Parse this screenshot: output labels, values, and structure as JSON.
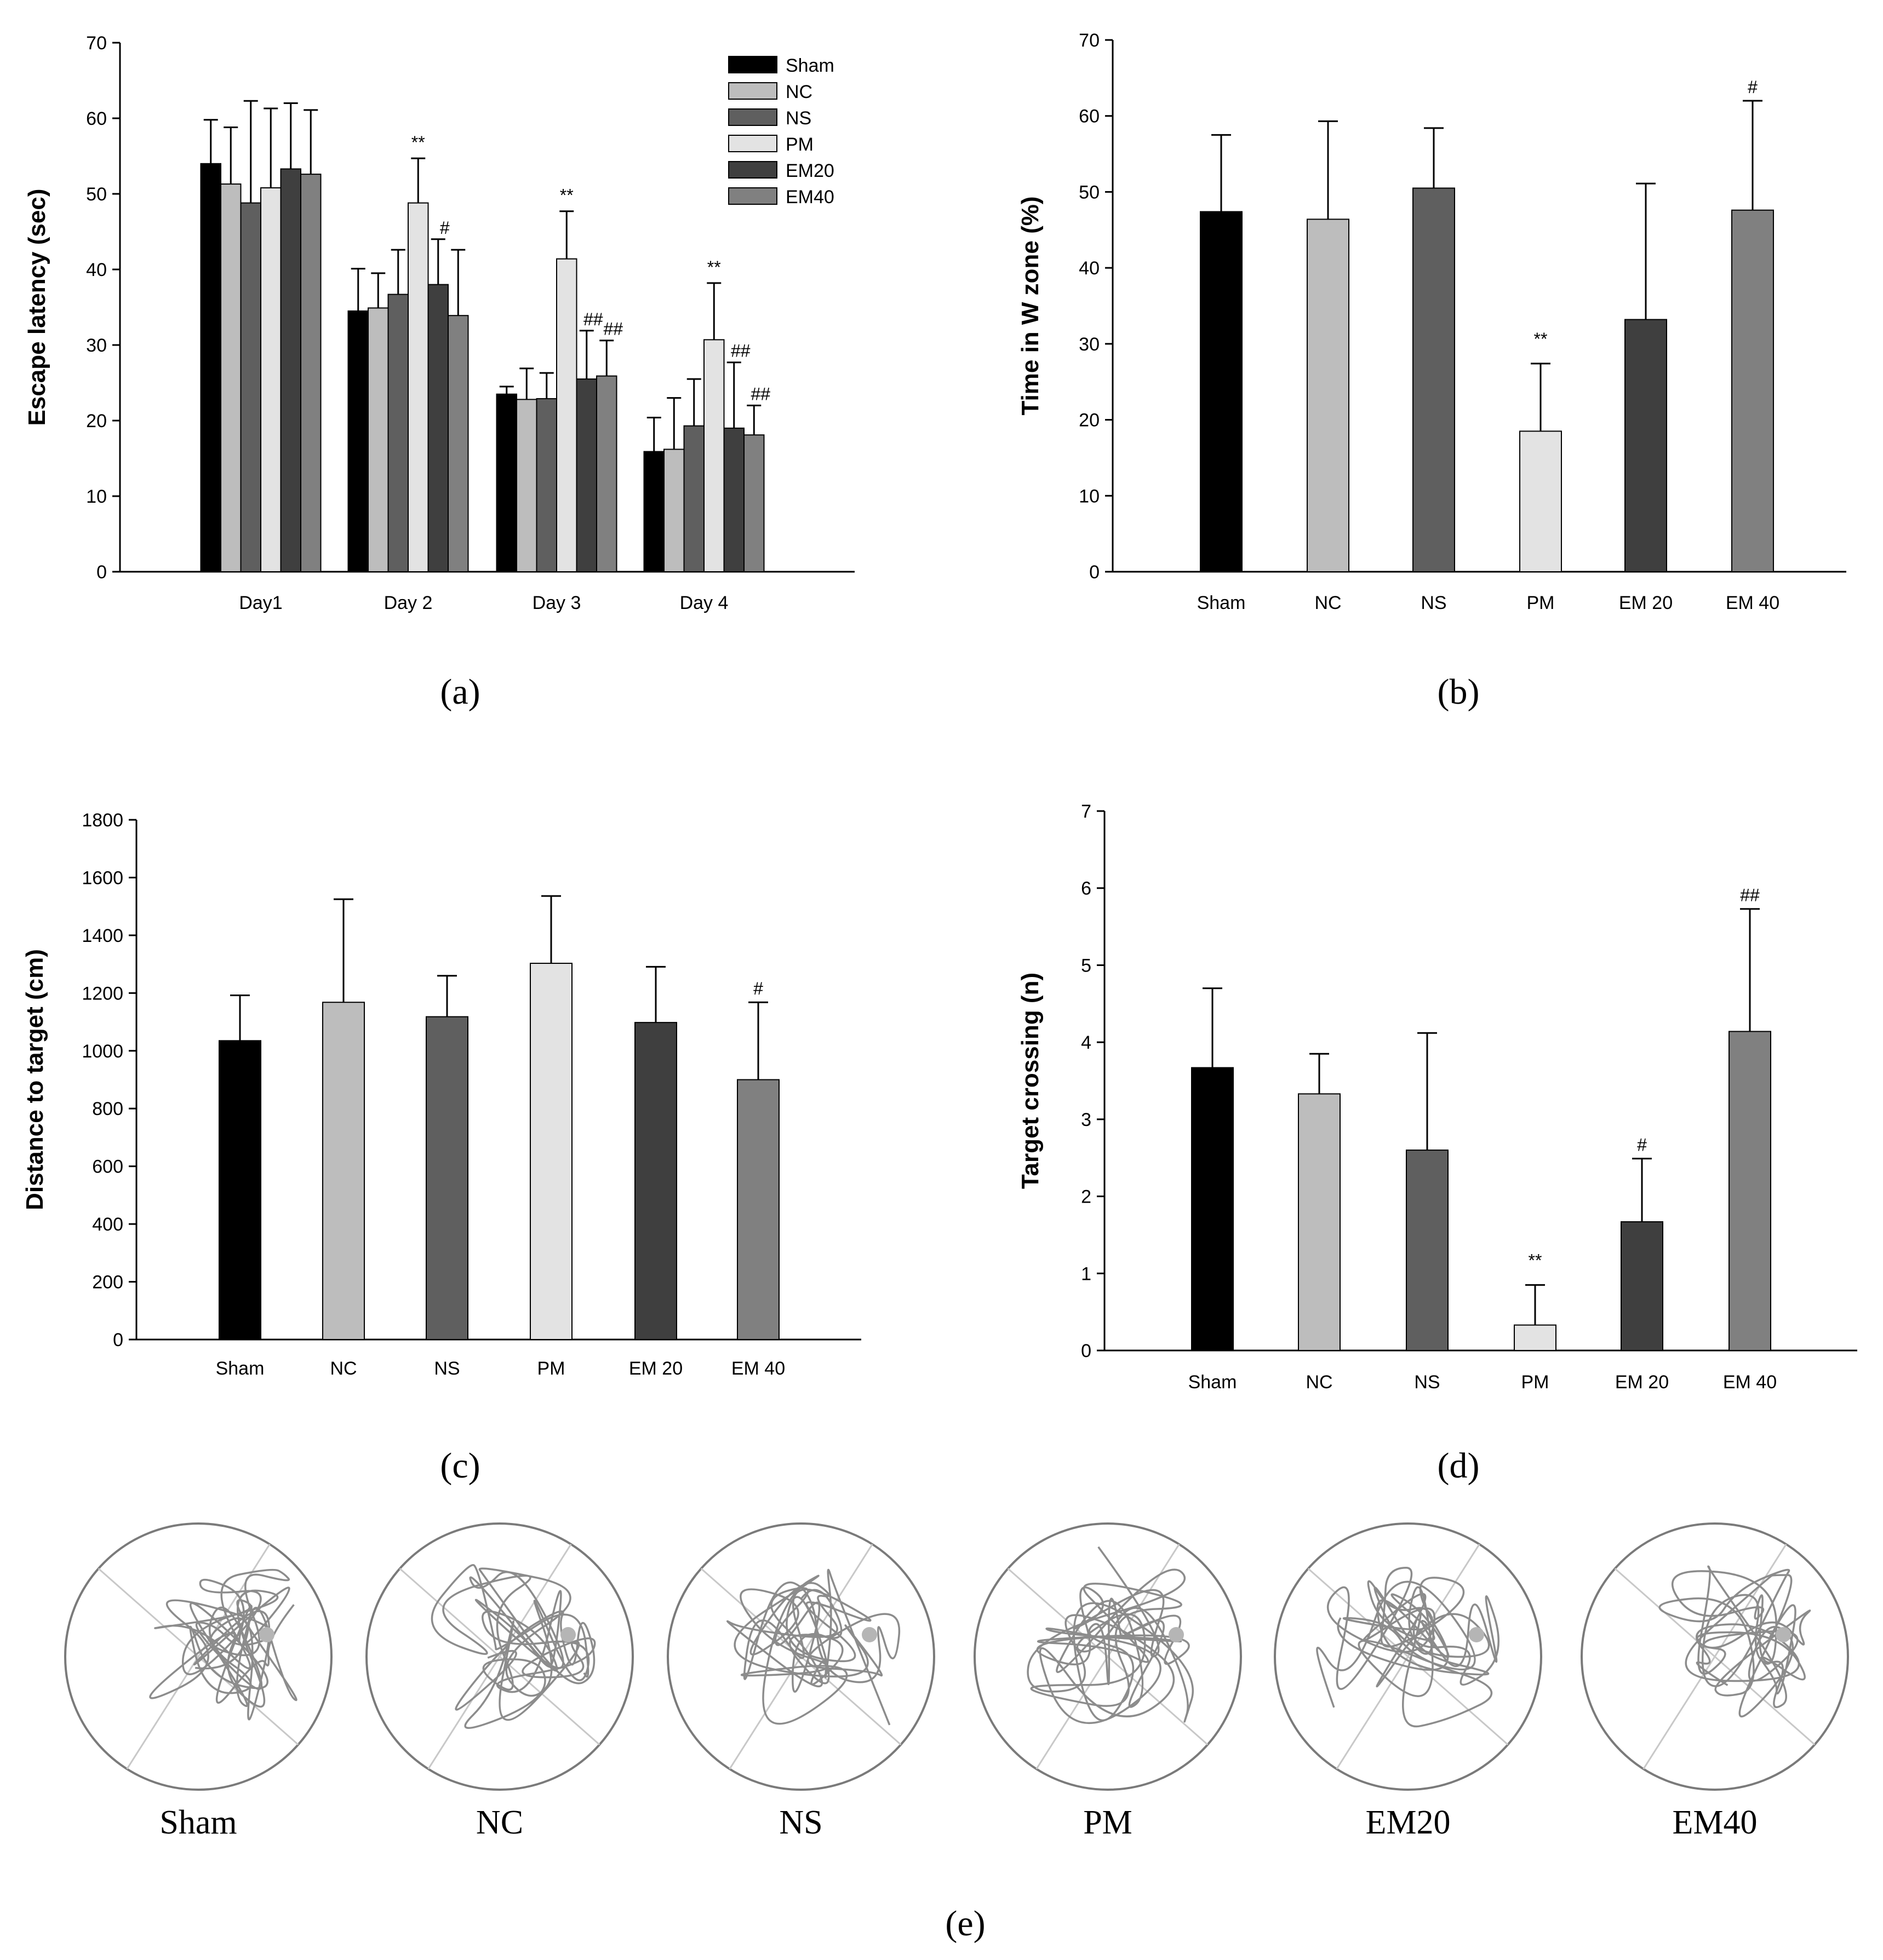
{
  "figure": {
    "panel_labels": [
      "(a)",
      "(b)",
      "(c)",
      "(d)",
      "(e)"
    ]
  },
  "colors": {
    "Sham": "#000000",
    "NC": "#bdbdbd",
    "NS": "#5f5f5f",
    "PM": "#e3e3e3",
    "EM20": "#3f3f3f",
    "EM40": "#808080"
  },
  "chart_data": [
    {
      "id": "a",
      "type": "bar",
      "title": "",
      "xlabel": "",
      "ylabel": "Escape latency (sec)",
      "ylim": [
        0,
        70
      ],
      "yticks": [
        0,
        10,
        20,
        30,
        40,
        50,
        60,
        70
      ],
      "categories": [
        "Day1",
        "Day 2",
        "Day 3",
        "Day 4"
      ],
      "legend_position": "top-right",
      "series": [
        {
          "name": "Sham",
          "color_key": "Sham",
          "values": [
            54.0,
            34.5,
            23.5,
            15.9
          ],
          "errors": [
            5.8,
            5.6,
            1.0,
            4.5
          ],
          "annotations": [
            "",
            "",
            "",
            ""
          ]
        },
        {
          "name": "NC",
          "color_key": "NC",
          "values": [
            51.3,
            34.9,
            22.8,
            16.2
          ],
          "errors": [
            7.5,
            4.6,
            4.1,
            6.8
          ],
          "annotations": [
            "",
            "",
            "",
            ""
          ]
        },
        {
          "name": "NS",
          "color_key": "NS",
          "values": [
            48.8,
            36.7,
            22.9,
            19.3
          ],
          "errors": [
            13.5,
            5.9,
            3.4,
            6.2
          ],
          "annotations": [
            "",
            "",
            "",
            ""
          ]
        },
        {
          "name": "PM",
          "color_key": "PM",
          "values": [
            50.8,
            48.8,
            41.4,
            30.7
          ],
          "errors": [
            10.5,
            5.9,
            6.3,
            7.5
          ],
          "annotations": [
            "",
            "**",
            "**",
            "**"
          ]
        },
        {
          "name": "EM20",
          "color_key": "EM20",
          "values": [
            53.3,
            38.0,
            25.5,
            19.0
          ],
          "errors": [
            8.7,
            6.0,
            6.4,
            8.7
          ],
          "annotations": [
            "",
            "#",
            "##",
            "##"
          ]
        },
        {
          "name": "EM40",
          "color_key": "EM40",
          "values": [
            52.6,
            33.9,
            25.9,
            18.1
          ],
          "errors": [
            8.5,
            8.7,
            4.7,
            3.9
          ],
          "annotations": [
            "",
            "",
            "##",
            "##"
          ]
        }
      ]
    },
    {
      "id": "b",
      "type": "bar",
      "title": "",
      "xlabel": "",
      "ylabel": "Time in W zone (%)",
      "ylim": [
        0,
        70
      ],
      "yticks": [
        0,
        10,
        20,
        30,
        40,
        50,
        60,
        70
      ],
      "categories": [
        "Sham",
        "NC",
        "NS",
        "PM",
        "EM 20",
        "EM 40"
      ],
      "color_keys": [
        "Sham",
        "NC",
        "NS",
        "PM",
        "EM20",
        "EM40"
      ],
      "values": [
        47.4,
        46.4,
        50.5,
        18.5,
        33.2,
        47.6
      ],
      "errors": [
        10.1,
        12.9,
        7.9,
        8.9,
        17.9,
        14.4
      ],
      "annotations": [
        "",
        "",
        "",
        "**",
        "",
        "#"
      ]
    },
    {
      "id": "c",
      "type": "bar",
      "title": "",
      "xlabel": "",
      "ylabel": "Distance to target (cm)",
      "ylim": [
        0,
        1800
      ],
      "yticks": [
        0,
        200,
        400,
        600,
        800,
        1000,
        1200,
        1400,
        1600,
        1800
      ],
      "categories": [
        "Sham",
        "NC",
        "NS",
        "PM",
        "EM 20",
        "EM 40"
      ],
      "color_keys": [
        "Sham",
        "NC",
        "NS",
        "PM",
        "EM20",
        "EM40"
      ],
      "values": [
        1035,
        1168,
        1118,
        1303,
        1098,
        900
      ],
      "errors": [
        157,
        357,
        142,
        233,
        193,
        268
      ],
      "annotations": [
        "",
        "",
        "",
        "",
        "",
        "#"
      ]
    },
    {
      "id": "d",
      "type": "bar",
      "title": "",
      "xlabel": "",
      "ylabel": "Target crossing (n)",
      "ylim": [
        0,
        7
      ],
      "yticks": [
        0,
        1,
        2,
        3,
        4,
        5,
        6,
        7
      ],
      "categories": [
        "Sham",
        "NC",
        "NS",
        "PM",
        "EM 20",
        "EM 40"
      ],
      "color_keys": [
        "Sham",
        "NC",
        "NS",
        "PM",
        "EM20",
        "EM40"
      ],
      "values": [
        3.67,
        3.33,
        2.6,
        0.33,
        1.67,
        4.14
      ],
      "errors": [
        1.03,
        0.52,
        1.52,
        0.52,
        0.82,
        1.59
      ],
      "annotations": [
        "",
        "",
        "",
        "**",
        "#",
        "##"
      ]
    }
  ],
  "tracks": {
    "labels": [
      "Sham",
      "NC",
      "NS",
      "PM",
      "EM20",
      "EM40"
    ]
  }
}
